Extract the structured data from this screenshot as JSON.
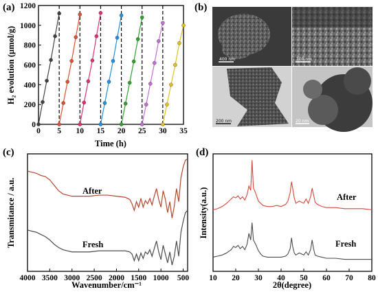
{
  "panels": {
    "a": {
      "letter": "(a)"
    },
    "b": {
      "letter": "(b)"
    },
    "c": {
      "letter": "(c)"
    },
    "d": {
      "letter": "(d)"
    }
  },
  "micrographs": {
    "scale_top_left": "400 nm",
    "scale_top_right": "200 nm",
    "scale_bottom_left": "200 nm",
    "scale_bottom_right": "20 nm"
  },
  "chart_data": [
    {
      "id": "a",
      "type": "scatter",
      "xlabel": "Time (h)",
      "ylabel": "H₂ evolution (μmol/g)",
      "xlim": [
        0,
        35
      ],
      "ylim": [
        0,
        1200
      ],
      "xticks": [
        0,
        5,
        10,
        15,
        20,
        25,
        30,
        35
      ],
      "yticks": [
        0,
        200,
        400,
        600,
        800,
        1000,
        1200
      ],
      "cycle_boundaries": [
        5,
        10,
        15,
        20,
        25,
        30
      ],
      "colors": [
        "#404040",
        "#e05030",
        "#e0306a",
        "#2090e0",
        "#30a030",
        "#c070d0",
        "#e0c020",
        "#20a0d0"
      ],
      "series": [
        {
          "x": [
            0,
            1,
            2,
            3,
            4,
            5
          ],
          "values": [
            0,
            225,
            440,
            650,
            890,
            1120
          ]
        },
        {
          "x": [
            5,
            6,
            7,
            8,
            9,
            10
          ],
          "values": [
            0,
            215,
            430,
            640,
            880,
            1110
          ]
        },
        {
          "x": [
            10,
            11,
            12,
            13,
            14,
            15
          ],
          "values": [
            0,
            220,
            435,
            645,
            890,
            1125
          ]
        },
        {
          "x": [
            15,
            16,
            17,
            18,
            19,
            20
          ],
          "values": [
            0,
            215,
            430,
            640,
            875,
            1100
          ]
        },
        {
          "x": [
            20,
            21,
            22,
            23,
            24,
            25
          ],
          "values": [
            0,
            210,
            420,
            635,
            860,
            1080
          ]
        },
        {
          "x": [
            25,
            26,
            27,
            28,
            29,
            30
          ],
          "values": [
            0,
            200,
            410,
            620,
            840,
            1025
          ]
        },
        {
          "x": [
            30,
            31,
            32,
            33,
            34,
            35
          ],
          "values": [
            0,
            200,
            400,
            600,
            820,
            1000
          ]
        }
      ]
    },
    {
      "id": "c",
      "type": "line",
      "xlabel": "Wavenumber/cm⁻¹",
      "ylabel": "Transmitance / a.u.",
      "xlim": [
        4000,
        400
      ],
      "xticks": [
        4000,
        3500,
        3000,
        2500,
        2000,
        1500,
        1000,
        500
      ],
      "series": [
        {
          "name": "After",
          "color": "#b2452d",
          "x": [
            4000,
            3900,
            3800,
            3700,
            3600,
            3500,
            3400,
            3300,
            3200,
            3100,
            3000,
            2900,
            2800,
            2600,
            2400,
            2200,
            2000,
            1800,
            1700,
            1650,
            1600,
            1550,
            1500,
            1450,
            1400,
            1350,
            1300,
            1250,
            1200,
            1150,
            1100,
            1050,
            1000,
            950,
            900,
            850,
            800,
            750,
            700,
            650,
            600,
            550,
            500,
            450,
            400
          ],
          "values": [
            88,
            87,
            86,
            84,
            83,
            80,
            75,
            70,
            67,
            66,
            65,
            65,
            65,
            65,
            66,
            66,
            65,
            64,
            62,
            58,
            52,
            60,
            55,
            63,
            55,
            61,
            58,
            63,
            57,
            65,
            72,
            62,
            55,
            70,
            62,
            50,
            60,
            45,
            56,
            72,
            60,
            82,
            92,
            98,
            99
          ]
        },
        {
          "name": "Fresh",
          "color": "#4a4a4a",
          "x": [
            4000,
            3900,
            3800,
            3700,
            3600,
            3500,
            3400,
            3300,
            3200,
            3100,
            3000,
            2900,
            2800,
            2600,
            2400,
            2200,
            2000,
            1800,
            1700,
            1650,
            1600,
            1550,
            1500,
            1450,
            1400,
            1350,
            1300,
            1250,
            1200,
            1150,
            1100,
            1050,
            1000,
            950,
            900,
            850,
            800,
            750,
            700,
            650,
            600,
            550,
            500,
            450,
            400
          ],
          "values": [
            34,
            33,
            32,
            30,
            28,
            25,
            21,
            18,
            16,
            15,
            14,
            14,
            14,
            14,
            15,
            15,
            15,
            15,
            14,
            12,
            6,
            12,
            6,
            13,
            8,
            14,
            12,
            16,
            10,
            17,
            24,
            14,
            7,
            20,
            12,
            4,
            14,
            2,
            10,
            24,
            10,
            32,
            42,
            50,
            52
          ]
        }
      ]
    },
    {
      "id": "d",
      "type": "line",
      "xlabel": "2θ(degree)",
      "ylabel": "Intensity(a.u.)",
      "xlim": [
        10,
        80
      ],
      "xticks": [
        10,
        20,
        30,
        40,
        50,
        60,
        70,
        80
      ],
      "series": [
        {
          "name": "After",
          "color": "#d8463a",
          "x": [
            10,
            12,
            14,
            16,
            18,
            19,
            20,
            21,
            22,
            23,
            24,
            25,
            25.8,
            26.6,
            27.2,
            27.8,
            28.3,
            29,
            30,
            31,
            32,
            34,
            36,
            38,
            40,
            42,
            43,
            44,
            44.6,
            45.1,
            45.8,
            46.5,
            48,
            50,
            51,
            52,
            53,
            53.7,
            54.3,
            55,
            56,
            58,
            60,
            64,
            68,
            72,
            76,
            80
          ],
          "values": [
            52,
            53,
            55,
            58,
            62,
            64,
            63,
            65,
            62,
            64,
            61,
            66,
            74,
            70,
            98,
            72,
            70,
            66,
            60,
            58,
            56,
            55,
            55,
            56,
            55,
            57,
            60,
            68,
            78,
            72,
            63,
            58,
            60,
            58,
            62,
            58,
            64,
            72,
            66,
            59,
            57,
            55,
            54,
            54,
            53,
            53,
            53,
            52
          ]
        },
        {
          "name": "Fresh",
          "color": "#4a4a4a",
          "x": [
            10,
            12,
            14,
            16,
            18,
            19,
            20,
            21,
            22,
            23,
            24,
            25,
            25.8,
            26.6,
            27.2,
            27.8,
            28.3,
            29,
            30,
            31,
            32,
            34,
            36,
            38,
            40,
            42,
            43,
            44,
            44.6,
            45.1,
            45.8,
            46.5,
            48,
            50,
            51,
            52,
            53,
            53.7,
            54.3,
            55,
            56,
            58,
            60,
            64,
            68,
            72,
            76,
            80
          ],
          "values": [
            8,
            9,
            10,
            12,
            15,
            18,
            17,
            19,
            16,
            18,
            15,
            20,
            30,
            24,
            40,
            24,
            22,
            19,
            14,
            11,
            9,
            8,
            8,
            8,
            8,
            9,
            11,
            16,
            26,
            18,
            12,
            10,
            12,
            10,
            13,
            10,
            15,
            24,
            16,
            10,
            9,
            8,
            7,
            7,
            6,
            6,
            6,
            6
          ]
        }
      ]
    }
  ]
}
